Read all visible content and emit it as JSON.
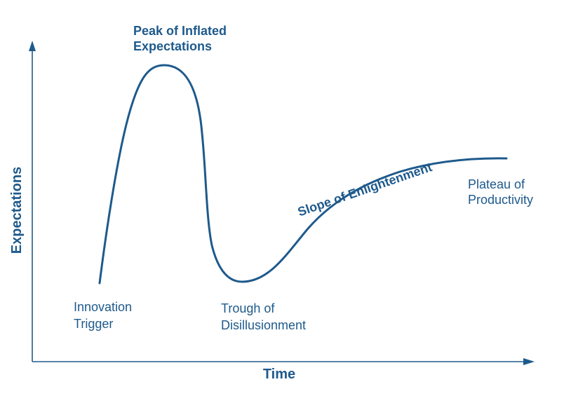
{
  "axes": {
    "x_label": "Time",
    "y_label": "Expectations"
  },
  "phases": {
    "innovation_trigger": [
      "Innovation",
      "Trigger"
    ],
    "peak": [
      "Peak of Inflated",
      "Expectations"
    ],
    "trough": [
      "Trough of",
      "Disillusionment"
    ],
    "slope": "Slope of Enlightenment",
    "plateau": [
      "Plateau of",
      "Productivity"
    ]
  },
  "colors": {
    "ink": "#1e5a8c",
    "background": "#ffffff"
  }
}
